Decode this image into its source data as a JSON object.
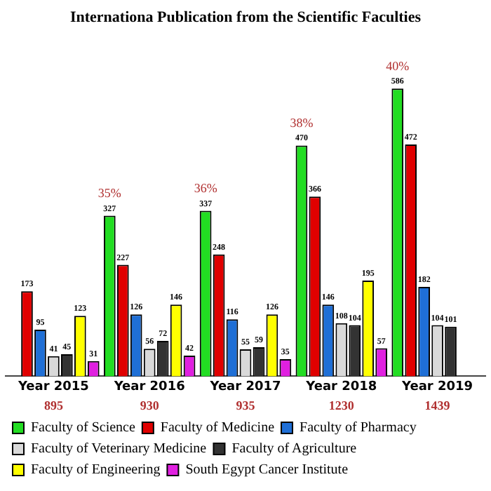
{
  "chart_data": {
    "type": "bar",
    "title": "Internationa Publication from the Scientific Faculties",
    "categories": [
      "Year 2015",
      "Year 2016",
      "Year 2017",
      "Year 2018",
      "Year 2019"
    ],
    "series": [
      {
        "name": "Faculty of Science",
        "color": "#22dd22",
        "values": [
          null,
          327,
          337,
          470,
          586
        ]
      },
      {
        "name": "Faculty of Medicine",
        "color": "#e00000",
        "values": [
          173,
          227,
          248,
          366,
          472
        ]
      },
      {
        "name": "Faculty of Pharmacy",
        "color": "#1f6fd6",
        "values": [
          95,
          126,
          116,
          146,
          182
        ]
      },
      {
        "name": "Faculty of Veterinary Medicine",
        "color": "#d9d9d9",
        "values": [
          41,
          56,
          55,
          108,
          104
        ]
      },
      {
        "name": "Faculty of Agriculture",
        "color": "#333333",
        "values": [
          45,
          72,
          59,
          104,
          101
        ]
      },
      {
        "name": "Faculty of Engineering",
        "color": "#ffff00",
        "values": [
          123,
          146,
          126,
          195,
          null
        ]
      },
      {
        "name": "South Egypt Cancer Institute",
        "color": "#e020e0",
        "values": [
          31,
          42,
          35,
          57,
          null
        ]
      }
    ],
    "data_labels": true,
    "annotations": [
      "35%",
      "36%",
      "38%",
      "40%",
      "895",
      "930",
      "935",
      "1230",
      "1439"
    ],
    "tick_labels": "x",
    "grid": false,
    "legend": "bottom left"
  }
}
